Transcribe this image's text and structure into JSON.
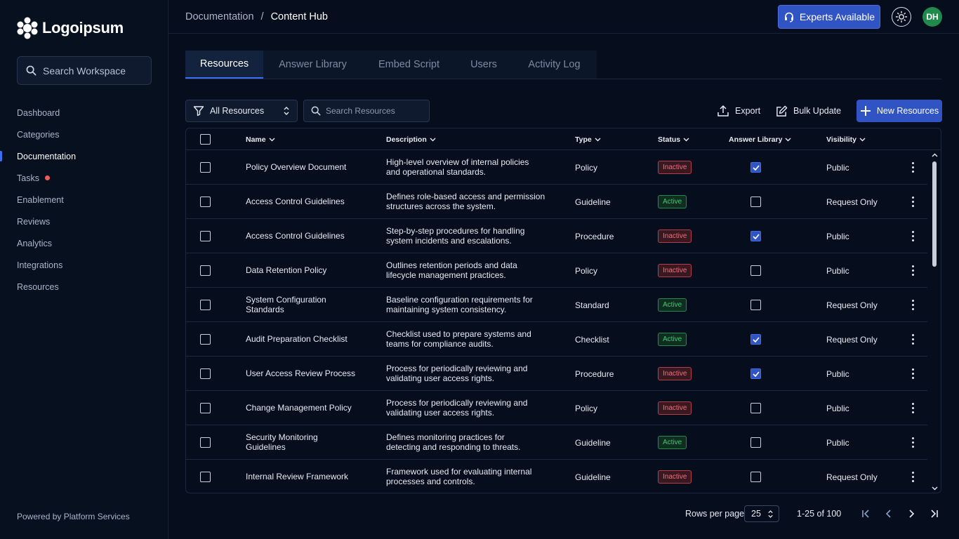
{
  "brand": {
    "name": "Logoipsum"
  },
  "sidebar": {
    "search_placeholder": "Search Workspace",
    "items": [
      {
        "label": "Dashboard"
      },
      {
        "label": "Categories"
      },
      {
        "label": "Documentation",
        "active": true
      },
      {
        "label": "Tasks",
        "notification": true
      },
      {
        "label": "Enablement"
      },
      {
        "label": "Reviews"
      },
      {
        "label": "Analytics"
      },
      {
        "label": "Integrations"
      },
      {
        "label": "Resources"
      }
    ],
    "footer": "Powered by Platform Services"
  },
  "header": {
    "breadcrumb": [
      "Documentation",
      "/",
      "Content Hub"
    ],
    "experts_label": "Experts Available",
    "avatar_initials": "DH"
  },
  "tabs": [
    "Resources",
    "Answer Library",
    "Embed Script",
    "Users",
    "Activity Log"
  ],
  "toolbar": {
    "filter_label": "All Resources",
    "search_placeholder": "Search Resources",
    "export_label": "Export",
    "bulk_label": "Bulk Update",
    "new_label": "New Resources"
  },
  "table": {
    "columns": [
      "Name",
      "Description",
      "Type",
      "Status",
      "Answer Library",
      "Visibility"
    ],
    "rows": [
      {
        "name": [
          "Policy Overview Document"
        ],
        "desc": [
          "High-level overview of internal policies",
          "and operational standards."
        ],
        "type": "Policy",
        "status": "Inactive",
        "answer": true,
        "visibility": "Public"
      },
      {
        "name": [
          "Access Control Guidelines"
        ],
        "desc": [
          "Defines role-based access and permission",
          "structures across the system."
        ],
        "type": "Guideline",
        "status": "Active",
        "answer": false,
        "visibility": "Request Only"
      },
      {
        "name": [
          "Access Control Guidelines"
        ],
        "desc": [
          "Step-by-step procedures for handling",
          "system incidents and escalations."
        ],
        "type": "Procedure",
        "status": "Inactive",
        "answer": true,
        "visibility": "Public"
      },
      {
        "name": [
          "Data Retention Policy"
        ],
        "desc": [
          "Outlines retention periods and data",
          "lifecycle management practices."
        ],
        "type": "Policy",
        "status": "Inactive",
        "answer": false,
        "visibility": "Public"
      },
      {
        "name": [
          "System Configuration",
          "Standards"
        ],
        "desc": [
          "Baseline configuration requirements for",
          "maintaining system consistency."
        ],
        "type": "Standard",
        "status": "Active",
        "answer": false,
        "visibility": "Request Only"
      },
      {
        "name": [
          "Audit Preparation Checklist"
        ],
        "desc": [
          "Checklist used to prepare systems and",
          "teams for compliance audits."
        ],
        "type": "Checklist",
        "status": "Active",
        "answer": true,
        "visibility": "Request Only"
      },
      {
        "name": [
          "User Access Review Process"
        ],
        "desc": [
          "Process for periodically reviewing and",
          "validating user access rights."
        ],
        "type": "Procedure",
        "status": "Inactive",
        "answer": true,
        "visibility": "Public"
      },
      {
        "name": [
          "Change Management Policy"
        ],
        "desc": [
          "Process for periodically reviewing and",
          "validating user access rights."
        ],
        "type": "Policy",
        "status": "Inactive",
        "answer": false,
        "visibility": "Public"
      },
      {
        "name": [
          "Security Monitoring",
          "Guidelines"
        ],
        "desc": [
          "Defines monitoring practices for",
          "detecting and responding to threats."
        ],
        "type": "Guideline",
        "status": "Active",
        "answer": false,
        "visibility": "Public"
      },
      {
        "name": [
          "Internal Review Framework"
        ],
        "desc": [
          "Framework used for evaluating internal",
          "processes and controls."
        ],
        "type": "Guideline",
        "status": "Inactive",
        "answer": false,
        "visibility": "Request Only"
      }
    ]
  },
  "pagination": {
    "rows_label": "Rows per page",
    "rows_value": "25",
    "range": "1-25 of 100"
  },
  "colors": {
    "accent": "#3154c4",
    "active": "#45c775",
    "inactive": "#ef6f7d",
    "notification": "#f15b5b"
  }
}
